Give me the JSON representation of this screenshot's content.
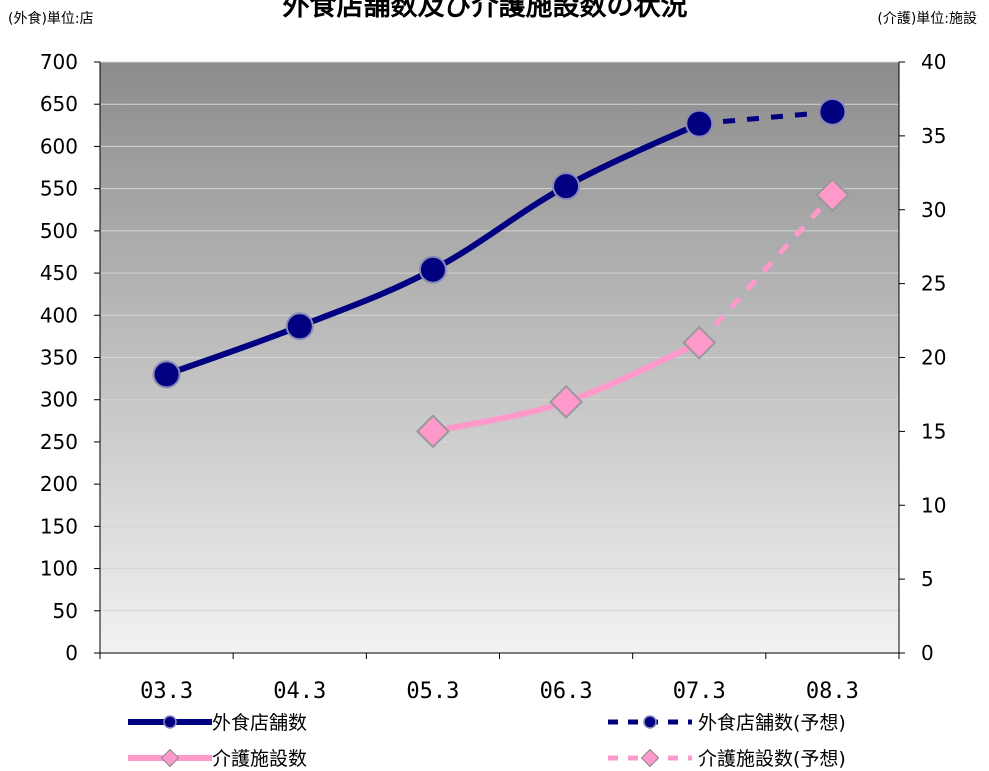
{
  "chart_data": {
    "type": "line",
    "title": "外食店舗数及び介護施設数の状況",
    "left_axis_unit": "(外食)単位:店",
    "right_axis_unit": "(介護)単位:施設",
    "categories": [
      "03.3",
      "04.3",
      "05.3",
      "06.3",
      "07.3",
      "08.3"
    ],
    "ylim_left": [
      0,
      700
    ],
    "ylim_right": [
      0,
      40
    ],
    "yticks_left": [
      "0",
      "50",
      "100",
      "150",
      "200",
      "250",
      "300",
      "350",
      "400",
      "450",
      "500",
      "550",
      "600",
      "650",
      "700"
    ],
    "yticks_right": [
      "0",
      "5",
      "10",
      "15",
      "20",
      "25",
      "30",
      "35",
      "40"
    ],
    "grid": true,
    "series": [
      {
        "name": "外食店舗数",
        "axis": "left",
        "color": "#000080",
        "values": [
          330,
          387,
          454,
          553,
          627,
          null
        ]
      },
      {
        "name": "外食店舗数(予想)",
        "axis": "left",
        "color": "#000080",
        "dashed": true,
        "values": [
          null,
          null,
          null,
          null,
          627,
          641
        ]
      },
      {
        "name": "介護施設数",
        "axis": "right",
        "color": "#ff99cc",
        "values": [
          null,
          null,
          15,
          17,
          21,
          null
        ]
      },
      {
        "name": "介護施設数(予想)",
        "axis": "right",
        "color": "#ff99cc",
        "dashed": true,
        "values": [
          null,
          null,
          null,
          null,
          21,
          31
        ]
      }
    ],
    "legend_position": "bottom"
  }
}
